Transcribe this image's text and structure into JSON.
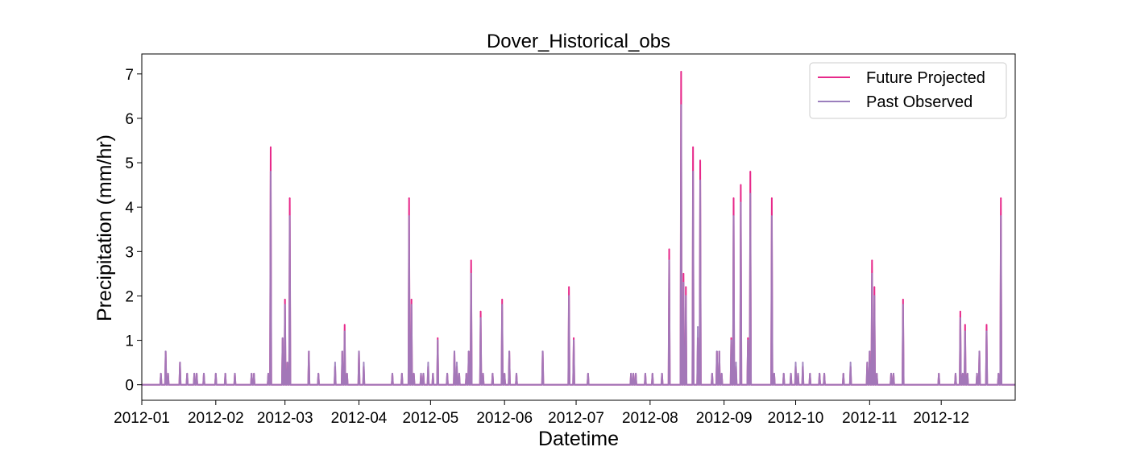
{
  "chart_data": {
    "type": "line",
    "title": "Dover_Historical_obs",
    "xlabel": "Datetime",
    "ylabel": "Precipitation (mm/hr)",
    "xlim": [
      "2012-01-01",
      "2013-01-01"
    ],
    "ylim": [
      -0.35,
      7.45
    ],
    "x_ticks": [
      "2012-01",
      "2012-02",
      "2012-03",
      "2012-04",
      "2012-05",
      "2012-06",
      "2012-07",
      "2012-08",
      "2012-09",
      "2012-10",
      "2012-11",
      "2012-12"
    ],
    "y_ticks": [
      "0",
      "1",
      "2",
      "3",
      "4",
      "5",
      "6",
      "7"
    ],
    "grid": false,
    "legend_position": "top-right",
    "series": [
      {
        "name": "Future Projected",
        "color": "#e7298a",
        "points": [
          [
            "2012-01-09",
            0.25
          ],
          [
            "2012-01-11",
            0.75
          ],
          [
            "2012-01-12",
            0.25
          ],
          [
            "2012-01-17",
            0.5
          ],
          [
            "2012-01-20",
            0.25
          ],
          [
            "2012-01-23",
            0.25
          ],
          [
            "2012-01-24",
            0.25
          ],
          [
            "2012-01-27",
            0.25
          ],
          [
            "2012-02-01",
            0.25
          ],
          [
            "2012-02-05",
            0.25
          ],
          [
            "2012-02-09",
            0.25
          ],
          [
            "2012-02-16",
            0.25
          ],
          [
            "2012-02-17",
            0.25
          ],
          [
            "2012-02-23",
            0.25
          ],
          [
            "2012-02-24",
            5.35
          ],
          [
            "2012-02-29",
            1.05
          ],
          [
            "2012-03-01",
            1.92
          ],
          [
            "2012-03-02",
            0.5
          ],
          [
            "2012-03-03",
            4.2
          ],
          [
            "2012-03-11",
            0.75
          ],
          [
            "2012-03-15",
            0.25
          ],
          [
            "2012-03-22",
            0.4
          ],
          [
            "2012-03-25",
            0.75
          ],
          [
            "2012-03-26",
            1.35
          ],
          [
            "2012-03-27",
            0.25
          ],
          [
            "2012-04-01",
            0.75
          ],
          [
            "2012-04-03",
            0.4
          ],
          [
            "2012-04-15",
            0.25
          ],
          [
            "2012-04-19",
            0.25
          ],
          [
            "2012-04-22",
            4.2
          ],
          [
            "2012-04-23",
            1.92
          ],
          [
            "2012-04-24",
            0.25
          ],
          [
            "2012-04-27",
            0.25
          ],
          [
            "2012-04-28",
            0.25
          ],
          [
            "2012-04-30",
            0.4
          ],
          [
            "2012-05-02",
            0.25
          ],
          [
            "2012-05-04",
            1.05
          ],
          [
            "2012-05-08",
            0.25
          ],
          [
            "2012-05-11",
            0.75
          ],
          [
            "2012-05-12",
            0.4
          ],
          [
            "2012-05-13",
            0.25
          ],
          [
            "2012-05-16",
            0.25
          ],
          [
            "2012-05-17",
            0.75
          ],
          [
            "2012-05-18",
            2.8
          ],
          [
            "2012-05-22",
            1.65
          ],
          [
            "2012-05-23",
            0.25
          ],
          [
            "2012-05-27",
            0.25
          ],
          [
            "2012-05-31",
            1.92
          ],
          [
            "2012-06-01",
            0.25
          ],
          [
            "2012-06-03",
            0.75
          ],
          [
            "2012-06-06",
            0.25
          ],
          [
            "2012-06-17",
            0.75
          ],
          [
            "2012-06-28",
            2.2
          ],
          [
            "2012-06-30",
            1.05
          ],
          [
            "2012-07-06",
            0.25
          ],
          [
            "2012-07-24",
            0.25
          ],
          [
            "2012-07-25",
            0.25
          ],
          [
            "2012-07-26",
            0.25
          ],
          [
            "2012-07-30",
            0.25
          ],
          [
            "2012-08-02",
            0.25
          ],
          [
            "2012-08-06",
            0.25
          ],
          [
            "2012-08-09",
            3.05
          ],
          [
            "2012-08-14",
            7.05
          ],
          [
            "2012-08-15",
            2.5
          ],
          [
            "2012-08-16",
            2.2
          ],
          [
            "2012-08-19",
            5.35
          ],
          [
            "2012-08-21",
            1.05
          ],
          [
            "2012-08-22",
            5.05
          ],
          [
            "2012-08-27",
            0.25
          ],
          [
            "2012-08-29",
            0.75
          ],
          [
            "2012-08-30",
            0.75
          ],
          [
            "2012-08-31",
            0.25
          ],
          [
            "2012-09-04",
            1.05
          ],
          [
            "2012-09-05",
            4.2
          ],
          [
            "2012-09-06",
            0.4
          ],
          [
            "2012-09-08",
            4.5
          ],
          [
            "2012-09-11",
            1.05
          ],
          [
            "2012-09-12",
            4.8
          ],
          [
            "2012-09-21",
            4.2
          ],
          [
            "2012-09-22",
            0.25
          ],
          [
            "2012-09-26",
            0.25
          ],
          [
            "2012-09-29",
            0.25
          ],
          [
            "2012-10-01",
            0.4
          ],
          [
            "2012-10-02",
            0.25
          ],
          [
            "2012-10-04",
            0.4
          ],
          [
            "2012-10-07",
            0.25
          ],
          [
            "2012-10-11",
            0.25
          ],
          [
            "2012-10-13",
            0.25
          ],
          [
            "2012-10-21",
            0.25
          ],
          [
            "2012-10-24",
            0.4
          ],
          [
            "2012-10-31",
            0.5
          ],
          [
            "2012-11-01",
            0.75
          ],
          [
            "2012-11-02",
            2.8
          ],
          [
            "2012-11-03",
            2.2
          ],
          [
            "2012-11-04",
            0.25
          ],
          [
            "2012-11-10",
            0.25
          ],
          [
            "2012-11-11",
            0.25
          ],
          [
            "2012-11-15",
            1.92
          ],
          [
            "2012-11-30",
            0.25
          ],
          [
            "2012-12-07",
            0.25
          ],
          [
            "2012-12-09",
            1.65
          ],
          [
            "2012-12-10",
            0.25
          ],
          [
            "2012-12-11",
            1.35
          ],
          [
            "2012-12-12",
            0.25
          ],
          [
            "2012-12-16",
            0.25
          ],
          [
            "2012-12-17",
            0.75
          ],
          [
            "2012-12-20",
            1.35
          ],
          [
            "2012-12-25",
            0.25
          ],
          [
            "2012-12-26",
            4.2
          ]
        ]
      },
      {
        "name": "Past Observed",
        "color": "#9b7fbd",
        "points": [
          [
            "2012-01-09",
            0.25
          ],
          [
            "2012-01-11",
            0.75
          ],
          [
            "2012-01-12",
            0.25
          ],
          [
            "2012-01-17",
            0.5
          ],
          [
            "2012-01-20",
            0.25
          ],
          [
            "2012-01-23",
            0.25
          ],
          [
            "2012-01-24",
            0.25
          ],
          [
            "2012-01-27",
            0.25
          ],
          [
            "2012-02-01",
            0.25
          ],
          [
            "2012-02-05",
            0.25
          ],
          [
            "2012-02-09",
            0.25
          ],
          [
            "2012-02-16",
            0.25
          ],
          [
            "2012-02-17",
            0.25
          ],
          [
            "2012-02-23",
            0.25
          ],
          [
            "2012-02-24",
            4.8
          ],
          [
            "2012-02-29",
            1.05
          ],
          [
            "2012-03-01",
            1.8
          ],
          [
            "2012-03-02",
            0.5
          ],
          [
            "2012-03-03",
            3.8
          ],
          [
            "2012-03-11",
            0.75
          ],
          [
            "2012-03-15",
            0.25
          ],
          [
            "2012-03-22",
            0.5
          ],
          [
            "2012-03-25",
            0.75
          ],
          [
            "2012-03-26",
            1.2
          ],
          [
            "2012-03-27",
            0.25
          ],
          [
            "2012-04-01",
            0.75
          ],
          [
            "2012-04-03",
            0.5
          ],
          [
            "2012-04-15",
            0.25
          ],
          [
            "2012-04-19",
            0.25
          ],
          [
            "2012-04-22",
            3.8
          ],
          [
            "2012-04-23",
            1.8
          ],
          [
            "2012-04-24",
            0.25
          ],
          [
            "2012-04-27",
            0.25
          ],
          [
            "2012-04-28",
            0.25
          ],
          [
            "2012-04-30",
            0.5
          ],
          [
            "2012-05-02",
            0.25
          ],
          [
            "2012-05-04",
            1.0
          ],
          [
            "2012-05-08",
            0.25
          ],
          [
            "2012-05-11",
            0.75
          ],
          [
            "2012-05-12",
            0.5
          ],
          [
            "2012-05-13",
            0.25
          ],
          [
            "2012-05-16",
            0.25
          ],
          [
            "2012-05-17",
            0.75
          ],
          [
            "2012-05-18",
            2.5
          ],
          [
            "2012-05-22",
            1.5
          ],
          [
            "2012-05-23",
            0.25
          ],
          [
            "2012-05-27",
            0.25
          ],
          [
            "2012-05-31",
            1.8
          ],
          [
            "2012-06-01",
            0.25
          ],
          [
            "2012-06-03",
            0.75
          ],
          [
            "2012-06-06",
            0.25
          ],
          [
            "2012-06-17",
            0.75
          ],
          [
            "2012-06-28",
            2.0
          ],
          [
            "2012-06-30",
            1.0
          ],
          [
            "2012-07-06",
            0.25
          ],
          [
            "2012-07-24",
            0.25
          ],
          [
            "2012-07-25",
            0.25
          ],
          [
            "2012-07-26",
            0.25
          ],
          [
            "2012-07-30",
            0.25
          ],
          [
            "2012-08-02",
            0.25
          ],
          [
            "2012-08-06",
            0.25
          ],
          [
            "2012-08-09",
            2.8
          ],
          [
            "2012-08-14",
            6.3
          ],
          [
            "2012-08-15",
            2.3
          ],
          [
            "2012-08-16",
            2.0
          ],
          [
            "2012-08-19",
            4.8
          ],
          [
            "2012-08-21",
            1.3
          ],
          [
            "2012-08-22",
            4.6
          ],
          [
            "2012-08-27",
            0.25
          ],
          [
            "2012-08-29",
            0.75
          ],
          [
            "2012-08-30",
            0.75
          ],
          [
            "2012-08-31",
            0.25
          ],
          [
            "2012-09-04",
            1.0
          ],
          [
            "2012-09-05",
            3.8
          ],
          [
            "2012-09-06",
            0.5
          ],
          [
            "2012-09-08",
            4.1
          ],
          [
            "2012-09-11",
            1.0
          ],
          [
            "2012-09-12",
            4.3
          ],
          [
            "2012-09-21",
            3.8
          ],
          [
            "2012-09-22",
            0.25
          ],
          [
            "2012-09-26",
            0.25
          ],
          [
            "2012-09-29",
            0.25
          ],
          [
            "2012-10-01",
            0.5
          ],
          [
            "2012-10-02",
            0.25
          ],
          [
            "2012-10-04",
            0.5
          ],
          [
            "2012-10-07",
            0.25
          ],
          [
            "2012-10-11",
            0.25
          ],
          [
            "2012-10-13",
            0.25
          ],
          [
            "2012-10-21",
            0.25
          ],
          [
            "2012-10-24",
            0.5
          ],
          [
            "2012-10-31",
            0.5
          ],
          [
            "2012-11-01",
            0.75
          ],
          [
            "2012-11-02",
            2.5
          ],
          [
            "2012-11-03",
            2.0
          ],
          [
            "2012-11-04",
            0.25
          ],
          [
            "2012-11-10",
            0.25
          ],
          [
            "2012-11-11",
            0.25
          ],
          [
            "2012-11-15",
            1.8
          ],
          [
            "2012-11-30",
            0.25
          ],
          [
            "2012-12-07",
            0.25
          ],
          [
            "2012-12-09",
            1.5
          ],
          [
            "2012-12-10",
            0.25
          ],
          [
            "2012-12-11",
            1.2
          ],
          [
            "2012-12-12",
            0.25
          ],
          [
            "2012-12-16",
            0.25
          ],
          [
            "2012-12-17",
            0.75
          ],
          [
            "2012-12-20",
            1.2
          ],
          [
            "2012-12-25",
            0.25
          ],
          [
            "2012-12-26",
            3.8
          ]
        ]
      }
    ]
  }
}
